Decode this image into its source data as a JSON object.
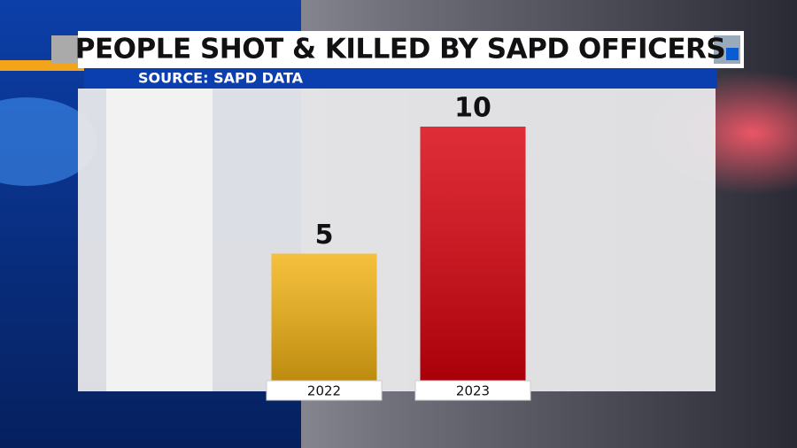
{
  "chart_data": {
    "type": "bar",
    "title": "PEOPLE SHOT & KILLED BY SAPD OFFICERS",
    "subtitle": "SOURCE: SAPD DATA",
    "categories": [
      "2022",
      "2023"
    ],
    "values": [
      5,
      10
    ],
    "colors": [
      "#f2b212",
      "#d8000c"
    ]
  }
}
